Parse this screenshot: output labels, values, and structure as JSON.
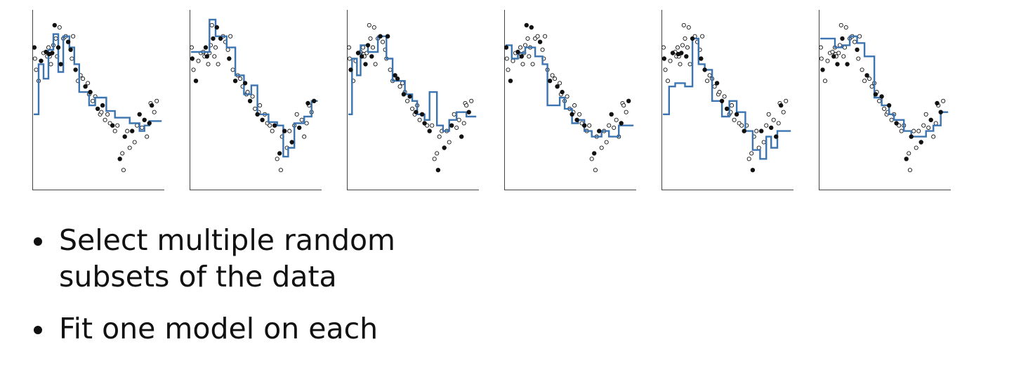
{
  "colors": {
    "step_line": "#3b74b0",
    "selected_point": "#111111",
    "unselected_point": "#ffffff",
    "axis": "#444444"
  },
  "bullets": [
    {
      "text": "Select multiple random subsets of the data"
    },
    {
      "text": "Fit one model on each"
    }
  ],
  "chart_data": {
    "type": "scatter",
    "shared_points": {
      "x": [
        0.05,
        0.1,
        0.2,
        0.4,
        0.6,
        0.8,
        1.0,
        1.1,
        1.2,
        1.25,
        1.3,
        1.4,
        1.5,
        1.6,
        1.7,
        1.8,
        1.9,
        2.0,
        2.1,
        2.2,
        2.4,
        2.6,
        2.8,
        3.0,
        3.1,
        3.2,
        3.4,
        3.6,
        3.8,
        4.0,
        4.2,
        4.4,
        4.5,
        4.6,
        4.8,
        5.0,
        5.2,
        5.4,
        5.5,
        5.6,
        5.8,
        6.0,
        6.2,
        6.4,
        6.6,
        6.8,
        7.0,
        7.2,
        7.3,
        7.4,
        7.6,
        7.8,
        8.0,
        8.2,
        8.4,
        8.6,
        8.8,
        9.0,
        9.2,
        9.4,
        9.5,
        9.6,
        9.8,
        10.0
      ],
      "y": [
        0.7,
        0.6,
        0.5,
        0.4,
        0.58,
        0.65,
        0.66,
        0.62,
        0.7,
        0.64,
        0.62,
        0.55,
        0.65,
        0.72,
        0.9,
        0.78,
        0.62,
        0.7,
        0.88,
        0.55,
        0.78,
        0.8,
        0.75,
        0.68,
        0.6,
        0.8,
        0.5,
        0.4,
        0.45,
        0.42,
        0.35,
        0.38,
        0.28,
        0.3,
        0.22,
        0.26,
        0.15,
        0.1,
        0.12,
        0.18,
        0.05,
        0.1,
        0.02,
        0.0,
        -0.05,
        0.0,
        -0.3,
        -0.25,
        -0.4,
        -0.1,
        -0.05,
        -0.2,
        -0.05,
        -0.15,
        0.0,
        0.1,
        -0.02,
        0.05,
        -0.1,
        0.02,
        0.2,
        0.18,
        0.12,
        0.22
      ]
    },
    "xlim": [
      0,
      10.5
    ],
    "ylim": [
      -0.55,
      1.0
    ],
    "panels": [
      {
        "selected": [
          0,
          4,
          6,
          9,
          12,
          14,
          17,
          19,
          22,
          23,
          26,
          30,
          33,
          36,
          39,
          43,
          46,
          49,
          52,
          55,
          57,
          59,
          61
        ],
        "step": [
          [
            0,
            0.1
          ],
          [
            0.4,
            0.55
          ],
          [
            0.8,
            0.42
          ],
          [
            1.2,
            0.68
          ],
          [
            1.6,
            0.82
          ],
          [
            2.0,
            0.48
          ],
          [
            2.4,
            0.8
          ],
          [
            2.9,
            0.7
          ],
          [
            3.3,
            0.55
          ],
          [
            3.7,
            0.3
          ],
          [
            4.5,
            0.18
          ],
          [
            5.0,
            0.25
          ],
          [
            5.9,
            0.13
          ],
          [
            6.6,
            0.07
          ],
          [
            7.3,
            0.07
          ],
          [
            7.8,
            0.02
          ],
          [
            8.6,
            -0.05
          ],
          [
            9.0,
            0.0
          ],
          [
            9.4,
            0.04
          ],
          [
            10.4,
            0.04
          ]
        ]
      },
      {
        "selected": [
          1,
          3,
          8,
          10,
          15,
          18,
          20,
          24,
          27,
          31,
          34,
          37,
          40,
          45,
          47,
          50,
          53,
          56,
          60,
          63
        ],
        "step": [
          [
            0,
            0.66
          ],
          [
            0.8,
            0.66
          ],
          [
            1.5,
            0.95
          ],
          [
            2.0,
            0.8
          ],
          [
            2.9,
            0.7
          ],
          [
            3.6,
            0.45
          ],
          [
            4.3,
            0.28
          ],
          [
            4.9,
            0.36
          ],
          [
            5.4,
            0.1
          ],
          [
            6.3,
            0.03
          ],
          [
            7.0,
            0.0
          ],
          [
            7.5,
            -0.28
          ],
          [
            7.9,
            -0.2
          ],
          [
            8.4,
            0.02
          ],
          [
            9.2,
            0.08
          ],
          [
            9.8,
            0.22
          ],
          [
            10.3,
            0.22
          ]
        ]
      },
      {
        "selected": [
          2,
          5,
          7,
          11,
          13,
          16,
          21,
          25,
          28,
          29,
          32,
          35,
          38,
          41,
          42,
          44,
          48,
          51,
          54,
          58,
          62
        ],
        "step": [
          [
            0,
            0.1
          ],
          [
            0.3,
            0.6
          ],
          [
            0.7,
            0.45
          ],
          [
            1.0,
            0.72
          ],
          [
            1.6,
            0.66
          ],
          [
            2.4,
            0.8
          ],
          [
            3.1,
            0.6
          ],
          [
            3.6,
            0.4
          ],
          [
            4.6,
            0.28
          ],
          [
            5.2,
            0.22
          ],
          [
            5.6,
            0.1
          ],
          [
            6.2,
            0.05
          ],
          [
            6.6,
            0.3
          ],
          [
            7.2,
            0.0
          ],
          [
            7.7,
            -0.05
          ],
          [
            8.2,
            0.05
          ],
          [
            8.8,
            0.12
          ],
          [
            9.6,
            0.08
          ],
          [
            10.4,
            0.08
          ]
        ]
      },
      {
        "selected": [
          0,
          3,
          6,
          10,
          14,
          18,
          22,
          27,
          30,
          33,
          37,
          40,
          43,
          47,
          50,
          55,
          59,
          63
        ],
        "step": [
          [
            0,
            0.72
          ],
          [
            0.5,
            0.6
          ],
          [
            1.0,
            0.65
          ],
          [
            1.6,
            0.7
          ],
          [
            2.4,
            0.62
          ],
          [
            3.0,
            0.55
          ],
          [
            3.4,
            0.18
          ],
          [
            4.4,
            0.25
          ],
          [
            4.8,
            0.15
          ],
          [
            5.4,
            0.02
          ],
          [
            5.9,
            0.05
          ],
          [
            6.4,
            -0.05
          ],
          [
            7.0,
            -0.1
          ],
          [
            7.8,
            -0.05
          ],
          [
            8.4,
            -0.1
          ],
          [
            9.2,
            0.0
          ],
          [
            10.4,
            0.0
          ]
        ]
      },
      {
        "selected": [
          1,
          5,
          9,
          12,
          16,
          20,
          24,
          26,
          31,
          34,
          36,
          41,
          44,
          48,
          52,
          56,
          58,
          61
        ],
        "step": [
          [
            0,
            0.1
          ],
          [
            0.5,
            0.35
          ],
          [
            1.0,
            0.38
          ],
          [
            1.8,
            0.35
          ],
          [
            2.4,
            0.78
          ],
          [
            2.9,
            0.55
          ],
          [
            3.4,
            0.5
          ],
          [
            4.0,
            0.22
          ],
          [
            4.8,
            0.08
          ],
          [
            5.4,
            0.22
          ],
          [
            6.0,
            0.12
          ],
          [
            6.7,
            -0.05
          ],
          [
            7.3,
            -0.22
          ],
          [
            7.9,
            -0.3
          ],
          [
            8.4,
            -0.1
          ],
          [
            8.8,
            -0.2
          ],
          [
            9.3,
            -0.05
          ],
          [
            10.4,
            -0.05
          ]
        ]
      },
      {
        "selected": [
          2,
          7,
          11,
          15,
          19,
          23,
          28,
          32,
          35,
          39,
          42,
          46,
          49,
          53,
          57,
          60,
          62
        ],
        "step": [
          [
            0,
            0.78
          ],
          [
            0.9,
            0.78
          ],
          [
            1.2,
            0.7
          ],
          [
            1.8,
            0.72
          ],
          [
            2.4,
            0.8
          ],
          [
            3.0,
            0.74
          ],
          [
            3.6,
            0.62
          ],
          [
            4.4,
            0.25
          ],
          [
            5.0,
            0.18
          ],
          [
            5.6,
            0.1
          ],
          [
            6.0,
            0.05
          ],
          [
            6.8,
            -0.05
          ],
          [
            7.4,
            -0.1
          ],
          [
            8.6,
            -0.05
          ],
          [
            9.2,
            0.0
          ],
          [
            9.8,
            0.12
          ],
          [
            10.4,
            0.12
          ]
        ]
      }
    ]
  }
}
